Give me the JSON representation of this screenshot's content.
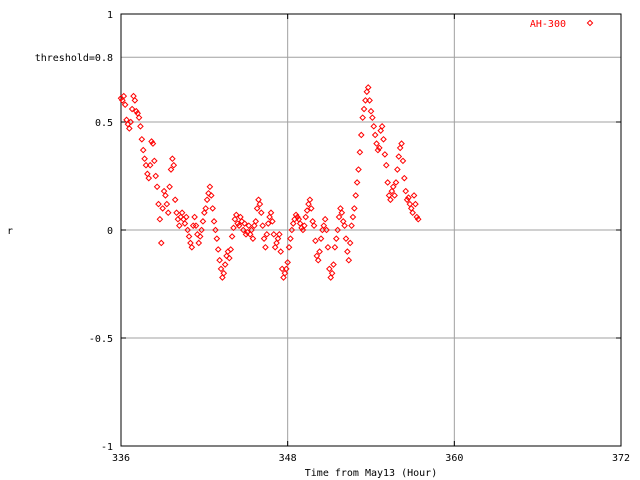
{
  "chart_data": {
    "type": "scatter",
    "title": "",
    "xlabel": "Time from May13 (Hour)",
    "ylabel": "r",
    "xlim": [
      336,
      372
    ],
    "ylim": [
      -1,
      1
    ],
    "xticks": [
      336,
      348,
      360,
      372
    ],
    "yticks": [
      -1,
      -0.5,
      0,
      0.5,
      1
    ],
    "ytick_labels": [
      "-1",
      "-0.5",
      "0",
      "0.5",
      "1"
    ],
    "threshold": {
      "value": 0.8,
      "label": "threshold=0.8"
    },
    "grid": true,
    "legend_position": "top-right",
    "series": [
      {
        "name": "AH-300",
        "color": "#ff0000",
        "marker": "diamond",
        "points": [
          [
            336.0,
            0.61
          ],
          [
            336.1,
            0.6
          ],
          [
            336.2,
            0.62
          ],
          [
            336.3,
            0.58
          ],
          [
            336.4,
            0.51
          ],
          [
            336.5,
            0.49
          ],
          [
            336.6,
            0.47
          ],
          [
            336.7,
            0.5
          ],
          [
            336.8,
            0.56
          ],
          [
            336.9,
            0.62
          ],
          [
            337.0,
            0.6
          ],
          [
            337.1,
            0.55
          ],
          [
            337.2,
            0.54
          ],
          [
            337.3,
            0.52
          ],
          [
            337.4,
            0.48
          ],
          [
            337.5,
            0.42
          ],
          [
            337.6,
            0.37
          ],
          [
            337.7,
            0.33
          ],
          [
            337.8,
            0.3
          ],
          [
            337.9,
            0.26
          ],
          [
            338.0,
            0.24
          ],
          [
            338.1,
            0.3
          ],
          [
            338.2,
            0.41
          ],
          [
            338.3,
            0.4
          ],
          [
            338.4,
            0.32
          ],
          [
            338.5,
            0.25
          ],
          [
            338.6,
            0.2
          ],
          [
            338.7,
            0.12
          ],
          [
            338.8,
            0.05
          ],
          [
            338.9,
            -0.06
          ],
          [
            339.0,
            0.1
          ],
          [
            339.1,
            0.18
          ],
          [
            339.2,
            0.16
          ],
          [
            339.3,
            0.12
          ],
          [
            339.4,
            0.08
          ],
          [
            339.5,
            0.2
          ],
          [
            339.6,
            0.28
          ],
          [
            339.7,
            0.33
          ],
          [
            339.8,
            0.3
          ],
          [
            339.9,
            0.14
          ],
          [
            340.0,
            0.08
          ],
          [
            340.1,
            0.05
          ],
          [
            340.2,
            0.02
          ],
          [
            340.3,
            0.06
          ],
          [
            340.4,
            0.08
          ],
          [
            340.5,
            0.05
          ],
          [
            340.6,
            0.03
          ],
          [
            340.7,
            0.06
          ],
          [
            340.8,
            0.0
          ],
          [
            340.9,
            -0.03
          ],
          [
            341.0,
            -0.06
          ],
          [
            341.1,
            -0.08
          ],
          [
            341.2,
            0.02
          ],
          [
            341.3,
            0.06
          ],
          [
            341.4,
            0.02
          ],
          [
            341.5,
            -0.02
          ],
          [
            341.6,
            -0.06
          ],
          [
            341.7,
            -0.03
          ],
          [
            341.8,
            0.0
          ],
          [
            341.9,
            0.04
          ],
          [
            342.0,
            0.08
          ],
          [
            342.1,
            0.1
          ],
          [
            342.2,
            0.14
          ],
          [
            342.3,
            0.17
          ],
          [
            342.4,
            0.2
          ],
          [
            342.5,
            0.16
          ],
          [
            342.6,
            0.1
          ],
          [
            342.7,
            0.04
          ],
          [
            342.8,
            0.0
          ],
          [
            342.9,
            -0.04
          ],
          [
            343.0,
            -0.09
          ],
          [
            343.1,
            -0.14
          ],
          [
            343.2,
            -0.18
          ],
          [
            343.3,
            -0.22
          ],
          [
            343.4,
            -0.2
          ],
          [
            343.5,
            -0.16
          ],
          [
            343.6,
            -0.12
          ],
          [
            343.7,
            -0.1
          ],
          [
            343.8,
            -0.13
          ],
          [
            343.9,
            -0.09
          ],
          [
            344.0,
            -0.03
          ],
          [
            344.1,
            0.01
          ],
          [
            344.2,
            0.05
          ],
          [
            344.3,
            0.07
          ],
          [
            344.4,
            0.03
          ],
          [
            344.5,
            0.02
          ],
          [
            344.6,
            0.06
          ],
          [
            344.7,
            0.04
          ],
          [
            344.8,
            0.0
          ],
          [
            344.9,
            0.03
          ],
          [
            345.0,
            -0.02
          ],
          [
            345.1,
            -0.01
          ],
          [
            345.2,
            0.02
          ],
          [
            345.3,
            -0.02
          ],
          [
            345.4,
            0.0
          ],
          [
            345.5,
            -0.04
          ],
          [
            345.6,
            0.02
          ],
          [
            345.7,
            0.04
          ],
          [
            345.8,
            0.1
          ],
          [
            345.9,
            0.14
          ],
          [
            346.0,
            0.12
          ],
          [
            346.1,
            0.08
          ],
          [
            346.2,
            0.02
          ],
          [
            346.3,
            -0.04
          ],
          [
            346.4,
            -0.08
          ],
          [
            346.5,
            -0.02
          ],
          [
            346.6,
            0.03
          ],
          [
            346.7,
            0.06
          ],
          [
            346.8,
            0.08
          ],
          [
            346.9,
            0.04
          ],
          [
            347.0,
            -0.02
          ],
          [
            347.1,
            -0.08
          ],
          [
            347.2,
            -0.06
          ],
          [
            347.3,
            -0.04
          ],
          [
            347.4,
            -0.02
          ],
          [
            347.5,
            -0.1
          ],
          [
            347.6,
            -0.18
          ],
          [
            347.7,
            -0.22
          ],
          [
            347.8,
            -0.2
          ],
          [
            347.9,
            -0.18
          ],
          [
            348.0,
            -0.15
          ],
          [
            348.1,
            -0.08
          ],
          [
            348.2,
            -0.04
          ],
          [
            348.3,
            0.0
          ],
          [
            348.4,
            0.03
          ],
          [
            348.5,
            0.05
          ],
          [
            348.6,
            0.07
          ],
          [
            348.7,
            0.06
          ],
          [
            348.8,
            0.05
          ],
          [
            348.9,
            0.03
          ],
          [
            349.0,
            0.01
          ],
          [
            349.1,
            0.0
          ],
          [
            349.2,
            0.02
          ],
          [
            349.3,
            0.06
          ],
          [
            349.4,
            0.09
          ],
          [
            349.5,
            0.12
          ],
          [
            349.6,
            0.14
          ],
          [
            349.7,
            0.1
          ],
          [
            349.8,
            0.04
          ],
          [
            349.9,
            0.02
          ],
          [
            350.0,
            -0.05
          ],
          [
            350.1,
            -0.12
          ],
          [
            350.2,
            -0.14
          ],
          [
            350.3,
            -0.1
          ],
          [
            350.4,
            -0.04
          ],
          [
            350.5,
            0.0
          ],
          [
            350.6,
            0.02
          ],
          [
            350.7,
            0.05
          ],
          [
            350.8,
            0.0
          ],
          [
            350.9,
            -0.08
          ],
          [
            351.0,
            -0.18
          ],
          [
            351.1,
            -0.22
          ],
          [
            351.2,
            -0.2
          ],
          [
            351.3,
            -0.16
          ],
          [
            351.4,
            -0.08
          ],
          [
            351.5,
            -0.04
          ],
          [
            351.6,
            0.0
          ],
          [
            351.7,
            0.06
          ],
          [
            351.8,
            0.1
          ],
          [
            351.9,
            0.08
          ],
          [
            352.0,
            0.04
          ],
          [
            352.1,
            0.02
          ],
          [
            352.2,
            -0.04
          ],
          [
            352.3,
            -0.1
          ],
          [
            352.4,
            -0.14
          ],
          [
            352.5,
            -0.06
          ],
          [
            352.6,
            0.02
          ],
          [
            352.7,
            0.06
          ],
          [
            352.8,
            0.1
          ],
          [
            352.9,
            0.16
          ],
          [
            353.0,
            0.22
          ],
          [
            353.1,
            0.28
          ],
          [
            353.2,
            0.36
          ],
          [
            353.3,
            0.44
          ],
          [
            353.4,
            0.52
          ],
          [
            353.5,
            0.56
          ],
          [
            353.6,
            0.6
          ],
          [
            353.7,
            0.64
          ],
          [
            353.8,
            0.66
          ],
          [
            353.9,
            0.6
          ],
          [
            354.0,
            0.55
          ],
          [
            354.1,
            0.52
          ],
          [
            354.2,
            0.48
          ],
          [
            354.3,
            0.44
          ],
          [
            354.4,
            0.4
          ],
          [
            354.5,
            0.37
          ],
          [
            354.6,
            0.38
          ],
          [
            354.7,
            0.46
          ],
          [
            354.8,
            0.48
          ],
          [
            354.9,
            0.42
          ],
          [
            355.0,
            0.35
          ],
          [
            355.1,
            0.3
          ],
          [
            355.2,
            0.22
          ],
          [
            355.3,
            0.16
          ],
          [
            355.4,
            0.14
          ],
          [
            355.5,
            0.18
          ],
          [
            355.6,
            0.2
          ],
          [
            355.7,
            0.16
          ],
          [
            355.8,
            0.22
          ],
          [
            355.9,
            0.28
          ],
          [
            356.0,
            0.34
          ],
          [
            356.1,
            0.38
          ],
          [
            356.2,
            0.4
          ],
          [
            356.3,
            0.32
          ],
          [
            356.4,
            0.24
          ],
          [
            356.5,
            0.18
          ],
          [
            356.6,
            0.14
          ],
          [
            356.7,
            0.15
          ],
          [
            356.8,
            0.12
          ],
          [
            356.9,
            0.1
          ],
          [
            357.0,
            0.08
          ],
          [
            357.1,
            0.16
          ],
          [
            357.2,
            0.12
          ],
          [
            357.3,
            0.06
          ],
          [
            357.4,
            0.05
          ]
        ]
      }
    ]
  }
}
